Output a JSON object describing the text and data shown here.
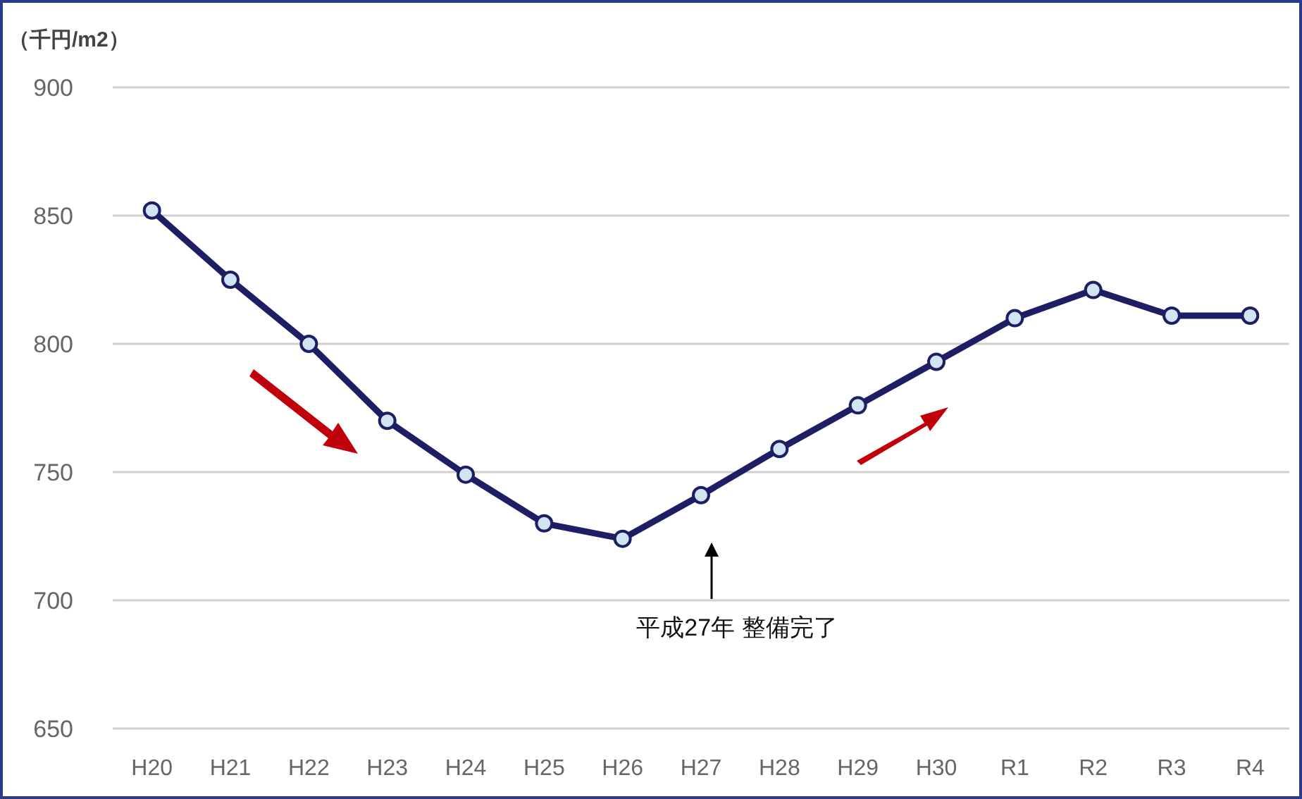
{
  "chart_data": {
    "type": "line",
    "ylabel": "（千円/m2）",
    "categories": [
      "H20",
      "H21",
      "H22",
      "H23",
      "H24",
      "H25",
      "H26",
      "H27",
      "H28",
      "H29",
      "H30",
      "R1",
      "R2",
      "R3",
      "R4"
    ],
    "series": [
      {
        "color": "#1e1e64",
        "values": [
          852,
          825,
          800,
          770,
          749,
          730,
          724,
          741,
          759,
          776,
          793,
          810,
          821,
          811,
          811
        ]
      }
    ],
    "ylim": [
      650,
      900
    ],
    "yticks": [
      650,
      700,
      750,
      800,
      850,
      900
    ],
    "grid": "y",
    "marker": "circle",
    "line_style": "solid",
    "annotations": [
      "平成27年 整備完了"
    ]
  }
}
